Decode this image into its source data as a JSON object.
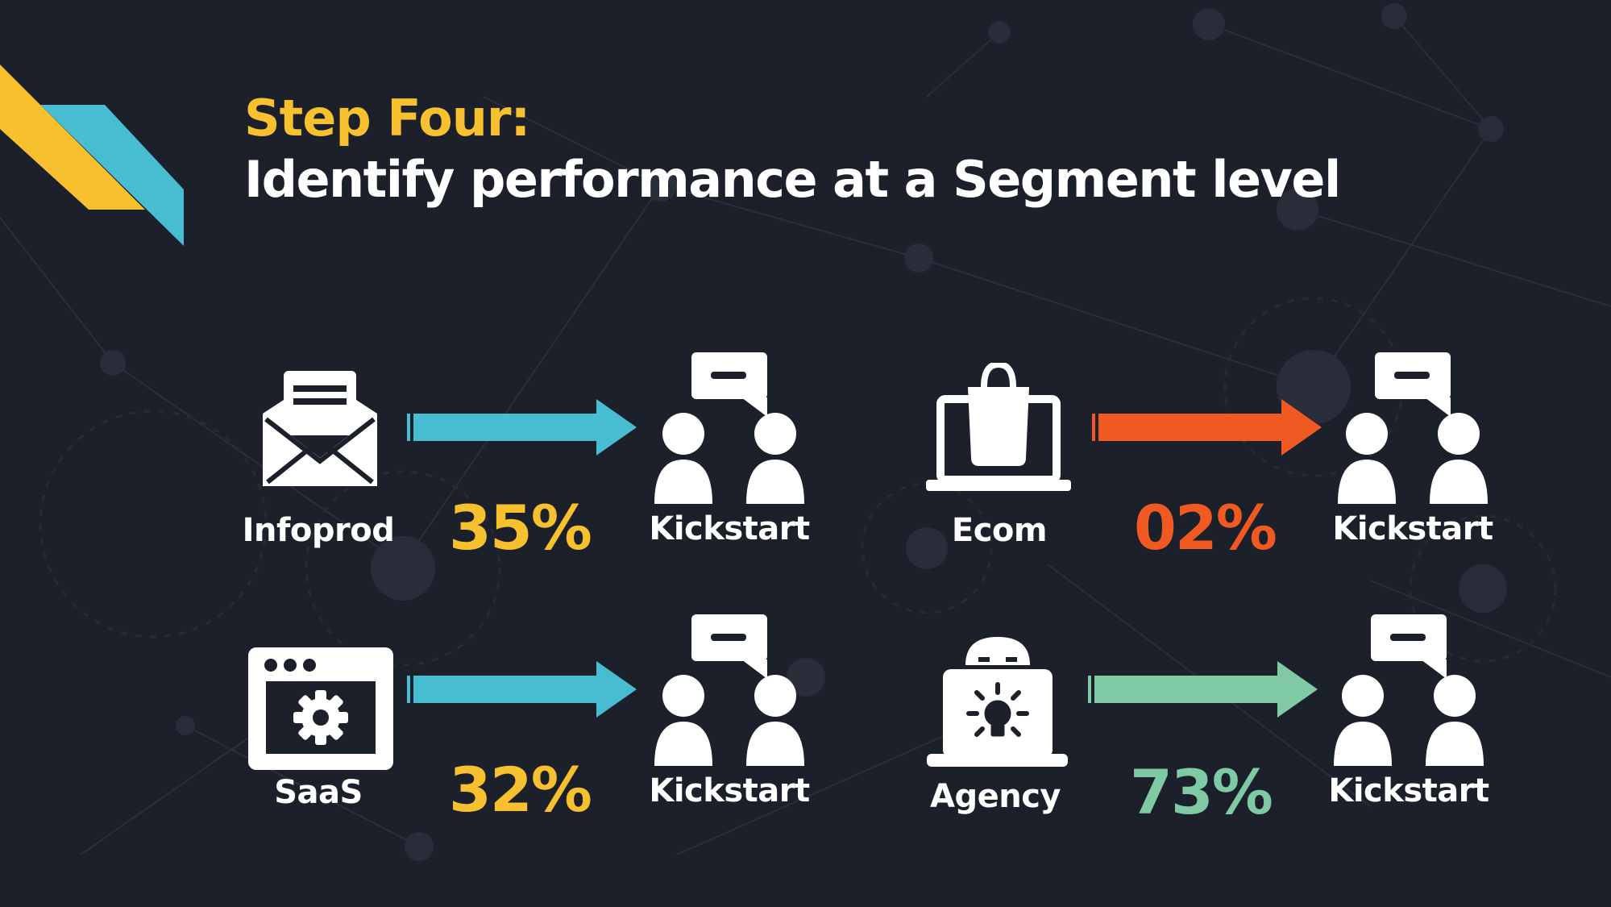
{
  "title": {
    "step": "Step Four:",
    "headline": "Identify performance at a Segment level"
  },
  "colors": {
    "background": "#1c202b",
    "yellow": "#f6c02f",
    "teal": "#48bcd0",
    "orange": "#f05a22",
    "green": "#7fc9a4",
    "white": "#ffffff"
  },
  "segments": [
    {
      "name": "Infoprod",
      "percent": "35%",
      "target": "Kickstart",
      "icon": "envelope-icon",
      "color": "#f6c02f",
      "arrow_color": "#48bcd0"
    },
    {
      "name": "Ecom",
      "percent": "02%",
      "target": "Kickstart",
      "icon": "shopping-laptop-icon",
      "color": "#f05a22",
      "arrow_color": "#f05a22"
    },
    {
      "name": "SaaS",
      "percent": "32%",
      "target": "Kickstart",
      "icon": "browser-gear-icon",
      "color": "#f6c02f",
      "arrow_color": "#48bcd0"
    },
    {
      "name": "Agency",
      "percent": "73%",
      "target": "Kickstart",
      "icon": "idea-laptop-icon",
      "color": "#7fc9a4",
      "arrow_color": "#7fc9a4"
    }
  ]
}
